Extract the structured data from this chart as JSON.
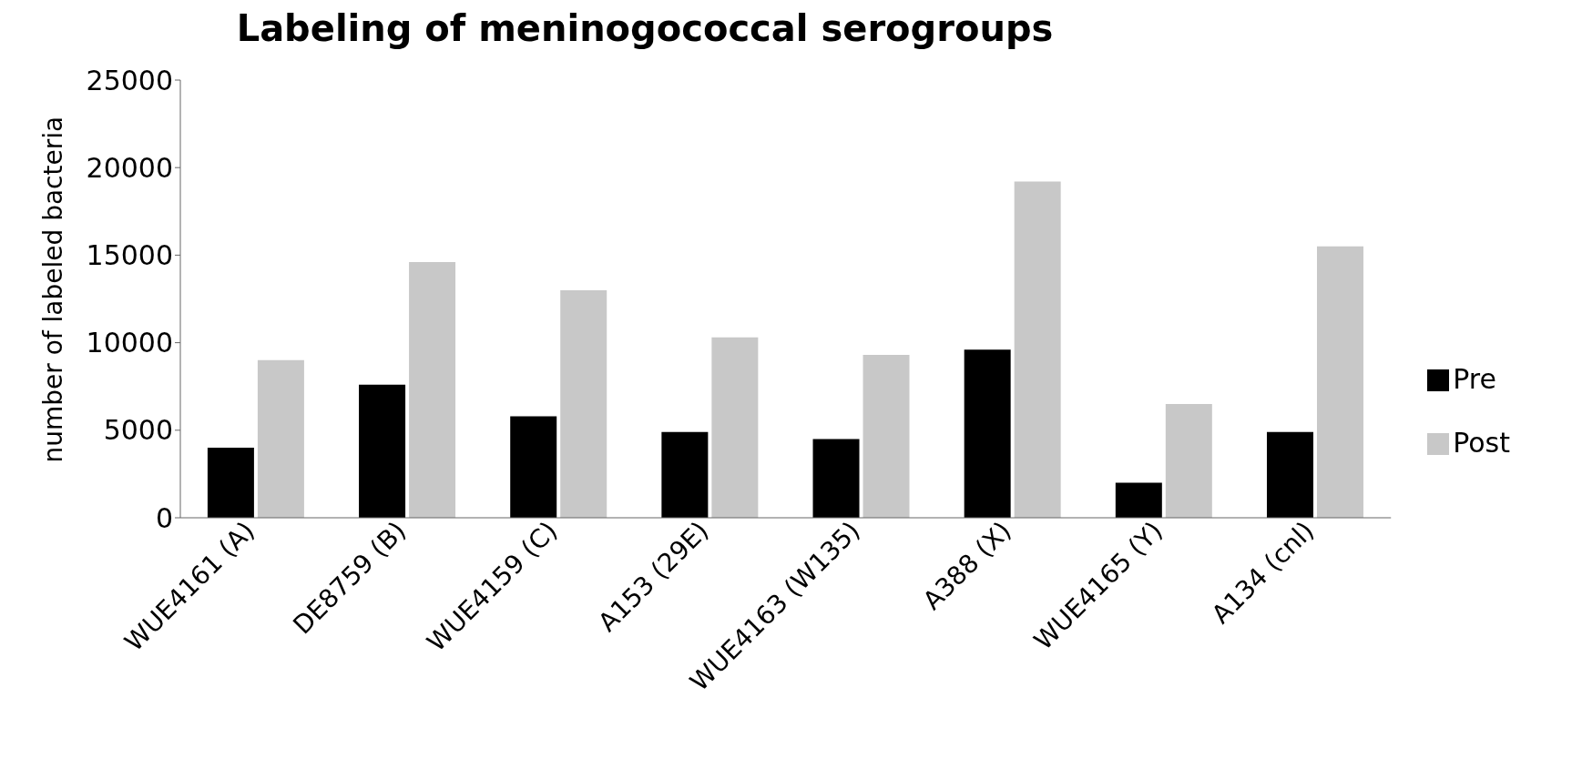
{
  "chart_data": {
    "type": "bar",
    "title": "Labeling of meninogococcal serogroups",
    "ylabel": "number of labeled bacteria",
    "categories": [
      "WUE4161 (A)",
      "DE8759 (B)",
      "WUE4159 (C)",
      "A153 (29E)",
      "WUE4163 (W135)",
      "A388 (X)",
      "WUE4165 (Y)",
      "A134 (cnl)"
    ],
    "series": [
      {
        "name": "Pre",
        "color": "#000000",
        "values": [
          4000,
          7600,
          5800,
          4900,
          4500,
          9600,
          2000,
          4900
        ]
      },
      {
        "name": "Post",
        "color": "#c8c8c8",
        "values": [
          9000,
          14600,
          13000,
          10300,
          9300,
          19200,
          6500,
          15500
        ]
      }
    ],
    "ylim": [
      0,
      25000
    ],
    "yticks": [
      0,
      5000,
      10000,
      15000,
      20000,
      25000
    ],
    "grid": false,
    "legend": "right"
  }
}
